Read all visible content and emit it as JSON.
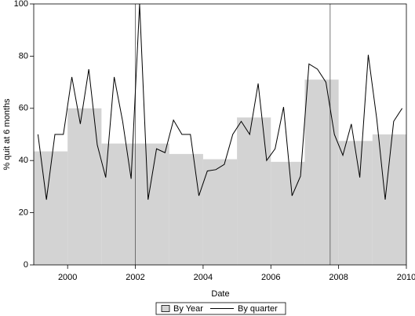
{
  "chart_data": {
    "type": "bar",
    "title": "",
    "xlabel": "Date",
    "ylabel": "% quit at 6 months",
    "xlim": [
      1999.0,
      2010.0
    ],
    "ylim": [
      0,
      100
    ],
    "x_ticks": [
      2000,
      2002,
      2004,
      2006,
      2008,
      2010
    ],
    "y_ticks": [
      0,
      20,
      40,
      60,
      80,
      100
    ],
    "x_tick_labels": [
      "2000",
      "2002",
      "2004",
      "2006",
      "2008",
      "2010"
    ],
    "y_tick_labels": [
      "0",
      "20",
      "40",
      "60",
      "80",
      "100"
    ],
    "reference_lines_x": [
      2002.0,
      2007.75
    ],
    "colors": {
      "bars": "#d3d3d3",
      "line": "#000000",
      "reference": "#555555",
      "axis": "#000000"
    },
    "grid": false,
    "legend_position": "bottom",
    "series": [
      {
        "name": "By Year",
        "type": "bar",
        "bins": [
          {
            "x0": 1999.0,
            "x1": 2000.0,
            "value": 43.5
          },
          {
            "x0": 2000.0,
            "x1": 2001.0,
            "value": 60.0
          },
          {
            "x0": 2001.0,
            "x1": 2002.0,
            "value": 46.5
          },
          {
            "x0": 2002.0,
            "x1": 2003.0,
            "value": 46.5
          },
          {
            "x0": 2003.0,
            "x1": 2004.0,
            "value": 42.5
          },
          {
            "x0": 2004.0,
            "x1": 2005.0,
            "value": 40.5
          },
          {
            "x0": 2005.0,
            "x1": 2006.0,
            "value": 56.5
          },
          {
            "x0": 2006.0,
            "x1": 2007.0,
            "value": 39.5
          },
          {
            "x0": 2007.0,
            "x1": 2008.0,
            "value": 71.0
          },
          {
            "x0": 2008.0,
            "x1": 2009.0,
            "value": 47.5
          },
          {
            "x0": 2009.0,
            "x1": 2010.0,
            "value": 50.0
          }
        ]
      },
      {
        "name": "By quarter",
        "type": "line",
        "x": [
          1999.125,
          1999.375,
          1999.625,
          1999.875,
          2000.125,
          2000.375,
          2000.625,
          2000.875,
          2001.125,
          2001.375,
          2001.625,
          2001.875,
          2002.125,
          2002.375,
          2002.625,
          2002.875,
          2003.125,
          2003.375,
          2003.625,
          2003.875,
          2004.125,
          2004.375,
          2004.625,
          2004.875,
          2005.125,
          2005.375,
          2005.625,
          2005.875,
          2006.125,
          2006.375,
          2006.625,
          2006.875,
          2007.125,
          2007.375,
          2007.625,
          2007.875,
          2008.125,
          2008.375,
          2008.625,
          2008.875,
          2009.125,
          2009.375,
          2009.625,
          2009.875
        ],
        "y": [
          50,
          25,
          50,
          50,
          72,
          54,
          75,
          46,
          33.5,
          72,
          55,
          33,
          100,
          25,
          44.5,
          43,
          55.5,
          50,
          50,
          26.5,
          36,
          36.5,
          38.5,
          50,
          55,
          50,
          69.5,
          40,
          44.5,
          60.5,
          26.5,
          34,
          77,
          75,
          70,
          50,
          42,
          54,
          33.5,
          80.5,
          56,
          25,
          55,
          60
        ]
      }
    ]
  },
  "legend": {
    "items": [
      {
        "label": "By Year"
      },
      {
        "label": "By quarter"
      }
    ]
  }
}
